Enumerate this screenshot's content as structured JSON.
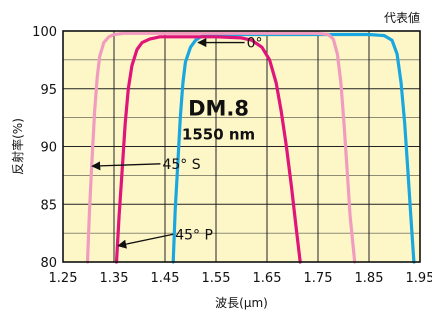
{
  "chart_data": {
    "type": "line",
    "corner_note": "代表値",
    "title": "DM.8",
    "subtitle": "1550 nm",
    "xlabel": "波長(µm)",
    "ylabel": "反射率(%)",
    "xlim": [
      1.25,
      1.95
    ],
    "ylim": [
      80,
      100
    ],
    "x_ticks": [
      "1.25",
      "1.35",
      "1.45",
      "1.55",
      "1.65",
      "1.75",
      "1.85",
      "1.95"
    ],
    "y_ticks": [
      "80",
      "85",
      "90",
      "95",
      "100"
    ],
    "y_tick_values": [
      80,
      85,
      90,
      95,
      100
    ],
    "grid": true,
    "background_color": "#fdf7c8",
    "annotations": [
      {
        "text": "0°",
        "arrow_to": [
          1.515,
          99.0
        ],
        "text_at": [
          1.61,
          99.0
        ]
      },
      {
        "text": "45° S",
        "arrow_to": [
          1.307,
          88.3
        ],
        "text_at": [
          1.445,
          88.5
        ]
      },
      {
        "text": "45° P",
        "arrow_to": [
          1.358,
          81.4
        ],
        "text_at": [
          1.47,
          82.4
        ]
      }
    ],
    "series": [
      {
        "label": "0°",
        "color": "#1aa7e0",
        "x": [
          1.466,
          1.47,
          1.475,
          1.48,
          1.485,
          1.49,
          1.5,
          1.51,
          1.52,
          1.53,
          1.55,
          1.6,
          1.7,
          1.8,
          1.85,
          1.88,
          1.895,
          1.905,
          1.913,
          1.92,
          1.926,
          1.932,
          1.938
        ],
        "y": [
          80.0,
          84.5,
          88.5,
          92.5,
          95.5,
          97.3,
          98.6,
          99.2,
          99.5,
          99.6,
          99.7,
          99.7,
          99.7,
          99.7,
          99.7,
          99.6,
          99.2,
          98.0,
          95.5,
          92.0,
          88.0,
          84.0,
          80.0
        ]
      },
      {
        "label": "45° P",
        "color": "#e0157a",
        "x": [
          1.355,
          1.36,
          1.366,
          1.372,
          1.378,
          1.385,
          1.395,
          1.405,
          1.42,
          1.44,
          1.46,
          1.5,
          1.55,
          1.6,
          1.62,
          1.64,
          1.655,
          1.668,
          1.678,
          1.688,
          1.698,
          1.707,
          1.715
        ],
        "y": [
          80.0,
          84.0,
          88.0,
          92.0,
          95.0,
          97.0,
          98.4,
          99.0,
          99.3,
          99.5,
          99.5,
          99.5,
          99.5,
          99.4,
          99.2,
          98.6,
          97.5,
          95.5,
          93.0,
          90.0,
          86.5,
          83.0,
          80.0
        ]
      },
      {
        "label": "45° S",
        "color": "#f19cbf",
        "x": [
          1.298,
          1.302,
          1.307,
          1.312,
          1.317,
          1.322,
          1.33,
          1.34,
          1.35,
          1.37,
          1.4,
          1.5,
          1.6,
          1.7,
          1.75,
          1.77,
          1.78,
          1.788,
          1.795,
          1.801,
          1.807,
          1.813,
          1.822
        ],
        "y": [
          80.0,
          84.5,
          89.0,
          93.0,
          96.0,
          97.8,
          99.0,
          99.5,
          99.7,
          99.8,
          99.8,
          99.8,
          99.8,
          99.8,
          99.8,
          99.7,
          99.3,
          98.0,
          95.5,
          92.0,
          88.0,
          84.0,
          80.0
        ]
      }
    ]
  }
}
